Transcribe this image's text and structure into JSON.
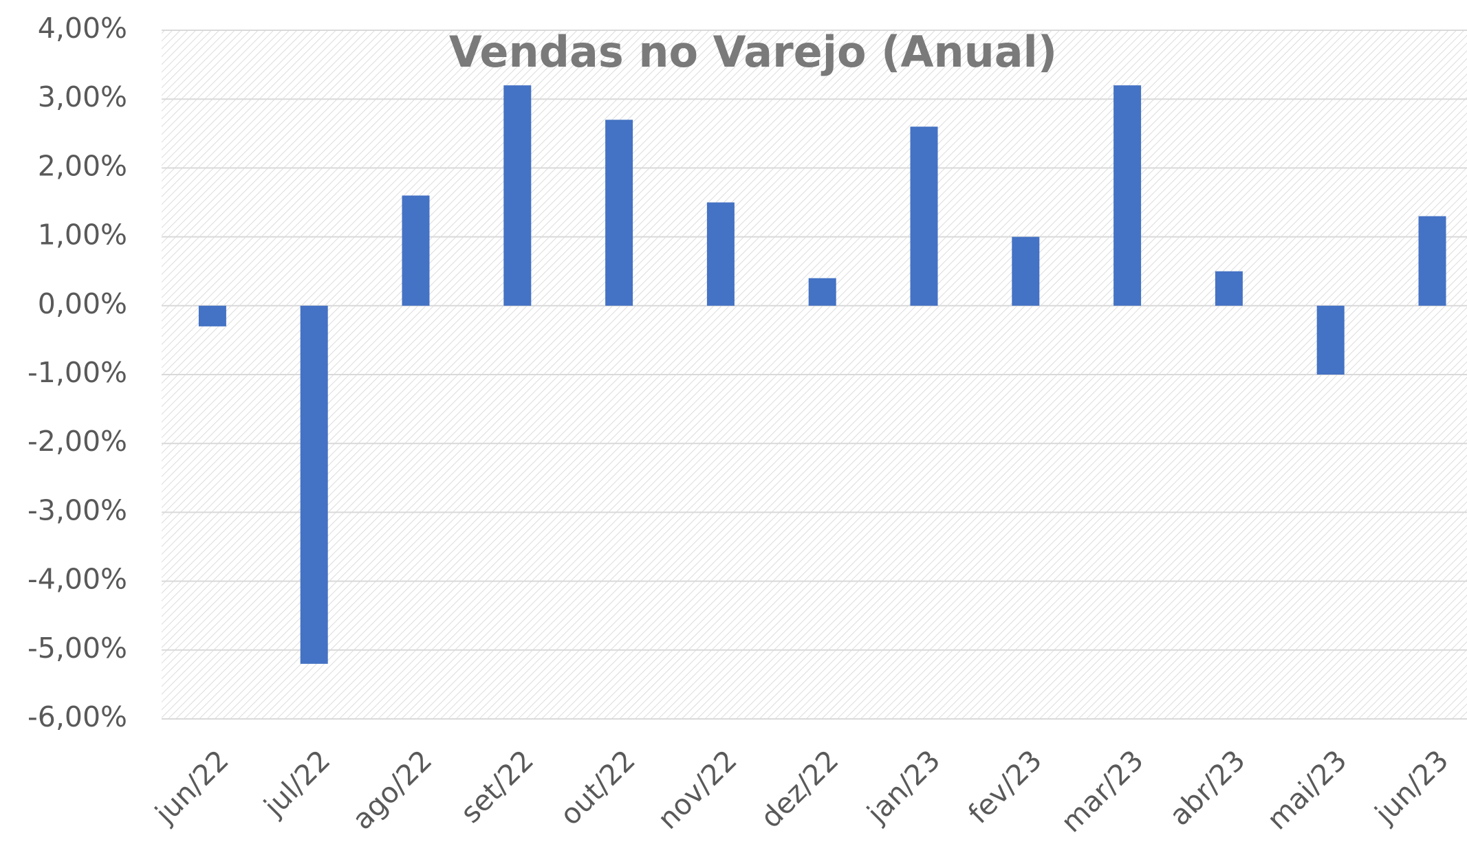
{
  "chart_data": {
    "type": "bar",
    "title": "Vendas no Varejo (Anual)",
    "categories": [
      "jun/22",
      "jul/22",
      "ago/22",
      "set/22",
      "out/22",
      "nov/22",
      "dez/22",
      "jan/23",
      "fev/23",
      "mar/23",
      "abr/23",
      "mai/23",
      "jun/23"
    ],
    "values": [
      -0.3,
      -5.2,
      1.6,
      3.2,
      2.7,
      1.5,
      0.4,
      2.6,
      1.0,
      3.2,
      0.5,
      -1.0,
      1.3
    ],
    "color": "#4472c4",
    "ylim": [
      -6,
      4
    ],
    "yticks": [
      {
        "value": -6,
        "label": "-6,00%"
      },
      {
        "value": -5,
        "label": "-5,00%"
      },
      {
        "value": -4,
        "label": "-4,00%"
      },
      {
        "value": -3,
        "label": "-3,00%"
      },
      {
        "value": -2,
        "label": "-2,00%"
      },
      {
        "value": -1,
        "label": "-1,00%"
      },
      {
        "value": 0,
        "label": "0,00%"
      },
      {
        "value": 1,
        "label": "1,00%"
      },
      {
        "value": 2,
        "label": "2,00%"
      },
      {
        "value": 3,
        "label": "3,00%"
      },
      {
        "value": 4,
        "label": "4,00%"
      }
    ],
    "grid": true
  }
}
